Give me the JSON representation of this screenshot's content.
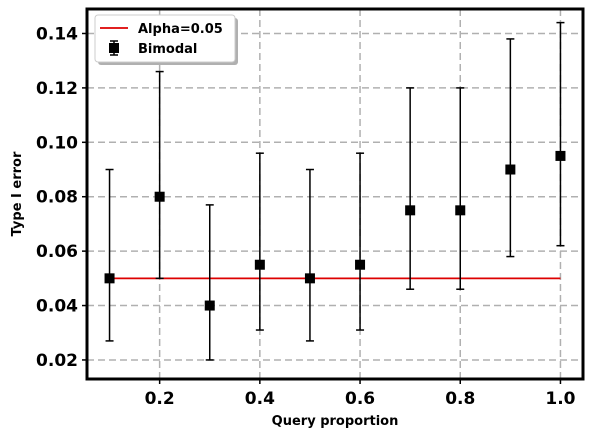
{
  "chart_data": {
    "type": "scatter",
    "title": "",
    "xlabel": "Query proportion",
    "ylabel": "Type I error",
    "xlim": [
      0.055,
      1.045
    ],
    "ylim": [
      0.013,
      0.149
    ],
    "x_ticks": [
      0.2,
      0.4,
      0.6,
      0.8,
      1.0
    ],
    "x_tick_labels": [
      "0.2",
      "0.4",
      "0.6",
      "0.8",
      "1.0"
    ],
    "y_ticks": [
      0.02,
      0.04,
      0.06,
      0.08,
      0.1,
      0.12,
      0.14
    ],
    "y_tick_labels": [
      "0.02",
      "0.04",
      "0.06",
      "0.08",
      "0.10",
      "0.12",
      "0.14"
    ],
    "grid": true,
    "legend_position": "top-left",
    "series": [
      {
        "name": "Alpha=0.05",
        "kind": "line",
        "color": "#dd0000",
        "x": [
          0.1,
          1.0
        ],
        "y": [
          0.05,
          0.05
        ]
      },
      {
        "name": "Bimodal",
        "kind": "errorbar",
        "color": "#000000",
        "marker": "square",
        "x": [
          0.1,
          0.2,
          0.3,
          0.4,
          0.5,
          0.6,
          0.7,
          0.8,
          0.9,
          1.0
        ],
        "y": [
          0.05,
          0.08,
          0.04,
          0.055,
          0.05,
          0.055,
          0.075,
          0.075,
          0.09,
          0.095
        ],
        "y_low": [
          0.027,
          0.05,
          0.02,
          0.031,
          0.027,
          0.031,
          0.046,
          0.046,
          0.058,
          0.062
        ],
        "y_high": [
          0.09,
          0.126,
          0.077,
          0.096,
          0.09,
          0.096,
          0.12,
          0.12,
          0.138,
          0.144
        ]
      }
    ]
  }
}
